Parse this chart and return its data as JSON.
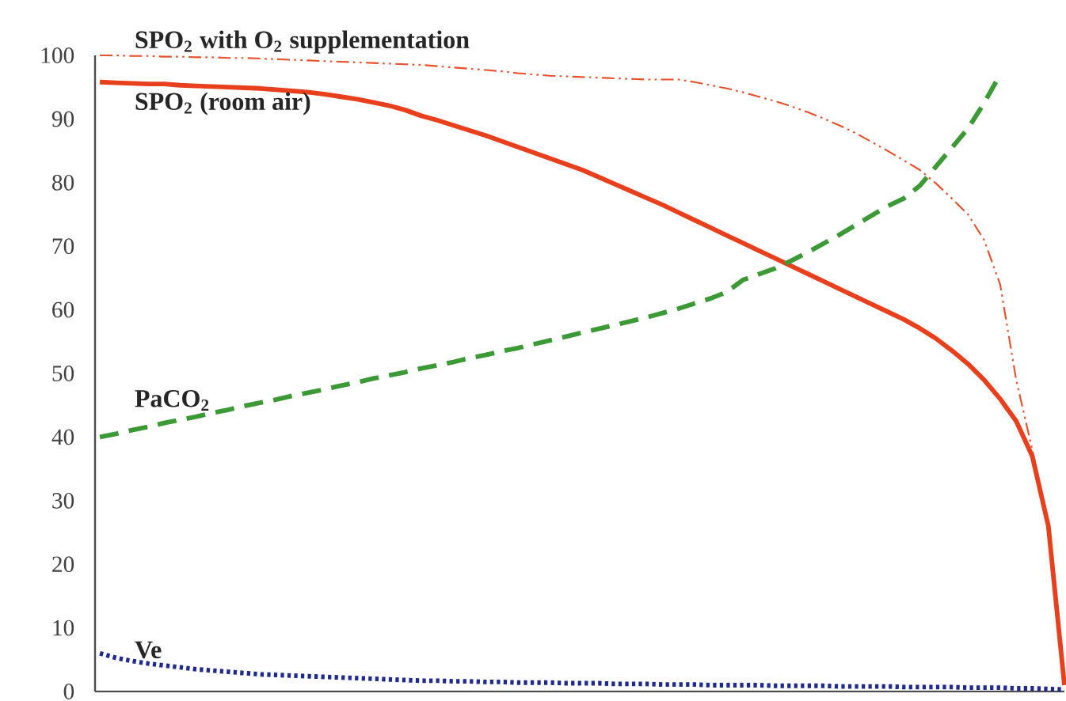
{
  "chart_data": {
    "type": "line",
    "categories": [
      null,
      null,
      null,
      null,
      null,
      null,
      null,
      null,
      null,
      null,
      null,
      null,
      null,
      null,
      null,
      null,
      null,
      null,
      null,
      null,
      null,
      null,
      null,
      null,
      null,
      null,
      null,
      null,
      null,
      null,
      null,
      null,
      null,
      null,
      null,
      null,
      null,
      null,
      null,
      null,
      null,
      null,
      null,
      null,
      null,
      null,
      null,
      null,
      null,
      null,
      null,
      null,
      null,
      null,
      null,
      null,
      null,
      null,
      null,
      null,
      null
    ],
    "ylim": [
      0,
      100
    ],
    "yticks": [
      0,
      10,
      20,
      30,
      40,
      50,
      60,
      70,
      80,
      90,
      100
    ],
    "tick_labels": "y",
    "series": [
      {
        "name": "SPO$_{2}$ with O$_{2}$ supplementation",
        "color": "#e8502a",
        "line_style": "dashdotdotted",
        "values": [
          100,
          100,
          99.9,
          99.9,
          99.8,
          99.8,
          99.7,
          99.7,
          99.6,
          99.6,
          99.5,
          99.4,
          99.3,
          99.2,
          99.1,
          99.0,
          98.9,
          98.8,
          98.7,
          98.6,
          98.5,
          98.3,
          98.1,
          97.9,
          97.7,
          97.5,
          97.2,
          97.0,
          96.8,
          96.7,
          96.6,
          96.5,
          96.4,
          96.3,
          96.2,
          96.2,
          96.2,
          95.8,
          95.3,
          94.8,
          94.2,
          93.5,
          92.8,
          92.0,
          91.1,
          90.1,
          89.0,
          87.8,
          86.4,
          85.0,
          83.5,
          82,
          79.9,
          77.5,
          75,
          71,
          64,
          49,
          38,
          26,
          1
        ]
      },
      {
        "name": "SPO$_{2}$ (room air)",
        "color": "#e8401c",
        "line_style": "solid",
        "values": [
          95.8,
          95.7,
          95.6,
          95.5,
          95.5,
          95.3,
          95.2,
          95.1,
          95.0,
          94.9,
          94.8,
          94.6,
          94.4,
          94.2,
          93.9,
          93.5,
          93.1,
          92.6,
          92.1,
          91.4,
          90.5,
          89.8,
          89.0,
          88.2,
          87.4,
          86.5,
          85.6,
          84.7,
          83.8,
          82.9,
          82.0,
          80.9,
          79.8,
          78.7,
          77.6,
          76.5,
          75.3,
          74.1,
          72.9,
          71.7,
          70.5,
          69.3,
          68.1,
          66.9,
          65.7,
          64.5,
          63.3,
          62.1,
          60.9,
          59.7,
          58.5,
          57.1,
          55.5,
          53.6,
          51.5,
          49,
          46,
          42.5,
          37,
          26,
          1
        ]
      },
      {
        "name": "PaCO$_{2}$",
        "color": "#3c9a36",
        "line_style": "dashed",
        "values": [
          40,
          40.5,
          41.1,
          41.6,
          42.2,
          42.7,
          43.2,
          43.8,
          44.3,
          44.9,
          45.4,
          45.9,
          46.5,
          47.0,
          47.5,
          48.1,
          48.6,
          49.2,
          49.7,
          50.2,
          50.8,
          51.3,
          51.8,
          52.4,
          52.9,
          53.5,
          54.0,
          54.6,
          55.2,
          55.8,
          56.4,
          57.0,
          57.6,
          58.2,
          58.8,
          59.5,
          60.2,
          61.0,
          61.8,
          62.8,
          64.7,
          65.6,
          66.5,
          67.7,
          69.0,
          70.4,
          71.8,
          73.3,
          74.8,
          76.3,
          77.5,
          79.5,
          82.5,
          85.5,
          88.5,
          92.5,
          97,
          null,
          null,
          null,
          null
        ]
      },
      {
        "name": "Ve",
        "color": "#1f2a8c",
        "line_style": "dotted",
        "values": [
          6,
          5.3,
          4.8,
          4.4,
          4.1,
          3.8,
          3.5,
          3.3,
          3.1,
          2.9,
          2.7,
          2.6,
          2.5,
          2.4,
          2.3,
          2.2,
          2.1,
          2.0,
          1.9,
          1.8,
          1.7,
          1.7,
          1.6,
          1.6,
          1.5,
          1.5,
          1.4,
          1.4,
          1.4,
          1.3,
          1.3,
          1.3,
          1.2,
          1.2,
          1.2,
          1.1,
          1.1,
          1.1,
          1.0,
          1.0,
          1.0,
          1.0,
          0.9,
          0.9,
          0.9,
          0.9,
          0.8,
          0.8,
          0.8,
          0.8,
          0.7,
          0.7,
          0.7,
          0.7,
          0.6,
          0.6,
          0.6,
          0.5,
          0.5,
          0.4,
          0.3
        ]
      }
    ]
  }
}
